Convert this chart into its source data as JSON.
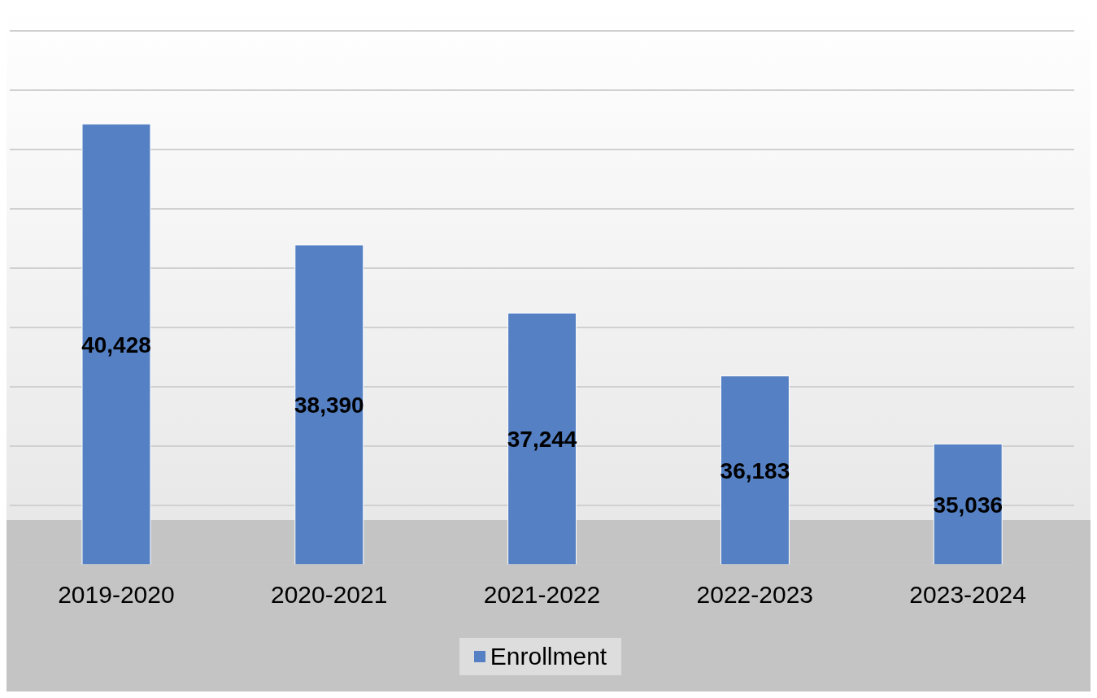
{
  "chart_data": {
    "type": "bar",
    "categories": [
      "2019-2020",
      "2020-2021",
      "2021-2022",
      "2022-2023",
      "2023-2024"
    ],
    "series": [
      {
        "name": "Enrollment",
        "color": "#5580c4",
        "values": [
          40428,
          38390,
          37244,
          36183,
          35036
        ],
        "value_labels": [
          "40,428",
          "38,390",
          "37,244",
          "36,183",
          "35,036"
        ]
      }
    ],
    "ylim": [
      33000,
      42000
    ],
    "yticks": [
      {
        "value": 33000,
        "label": null
      },
      {
        "value": 34000,
        "label": null
      },
      {
        "value": 35000,
        "label": null
      },
      {
        "value": 36000,
        "label": null
      },
      {
        "value": 37000,
        "label": null
      },
      {
        "value": 38000,
        "label": null
      },
      {
        "value": 39000,
        "label": null
      },
      {
        "value": 40000,
        "label": null
      },
      {
        "value": 41000,
        "label": null
      },
      {
        "value": 42000,
        "label": null
      }
    ],
    "tick_labels": "x",
    "grid": "y",
    "legend": "bottom"
  }
}
